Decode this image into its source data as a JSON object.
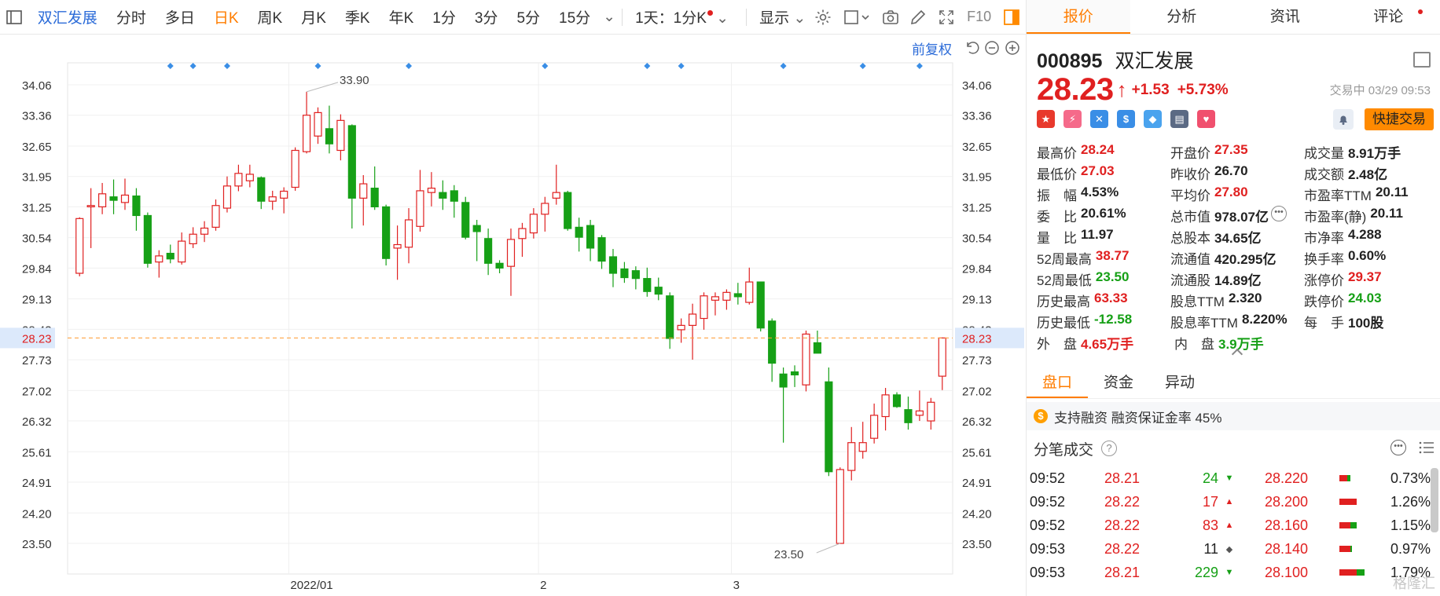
{
  "toolbar": {
    "sidebar_toggle": "sidebar-toggle",
    "stock_name": "双汇发展",
    "periods": [
      "分时",
      "多日",
      "日K",
      "周K",
      "月K",
      "季K",
      "年K",
      "1分",
      "3分",
      "5分",
      "15分"
    ],
    "active_period": "日K",
    "multi_period": "1天：1分K",
    "display": "显示",
    "f10": "F10"
  },
  "subbar": {
    "adjust": "前复权"
  },
  "chart_data": {
    "type": "candlestick",
    "y_ticks": [
      "34.06",
      "33.36",
      "32.65",
      "31.95",
      "31.25",
      "30.54",
      "29.84",
      "29.13",
      "28.43",
      "27.73",
      "27.02",
      "26.32",
      "25.61",
      "24.91",
      "24.20",
      "23.50"
    ],
    "ylim": [
      23.5,
      34.06
    ],
    "x_labels": [
      "2022/01",
      "2",
      "3"
    ],
    "current_price_label": "28.23",
    "current_price": 28.23,
    "high_label": "33.90",
    "low_label": "23.50",
    "candles": [
      {
        "o": 29.72,
        "h": 31.01,
        "l": 29.65,
        "c": 30.98
      },
      {
        "o": 31.25,
        "h": 31.68,
        "l": 30.3,
        "c": 31.28
      },
      {
        "o": 31.25,
        "h": 31.8,
        "l": 31.08,
        "c": 31.55
      },
      {
        "o": 31.48,
        "h": 31.88,
        "l": 31.08,
        "c": 31.4
      },
      {
        "o": 31.35,
        "h": 31.9,
        "l": 31.18,
        "c": 31.52
      },
      {
        "o": 31.5,
        "h": 31.68,
        "l": 30.7,
        "c": 31.05
      },
      {
        "o": 31.05,
        "h": 31.12,
        "l": 29.85,
        "c": 29.95
      },
      {
        "o": 29.98,
        "h": 30.25,
        "l": 29.62,
        "c": 30.12
      },
      {
        "o": 30.18,
        "h": 30.38,
        "l": 29.95,
        "c": 30.05
      },
      {
        "o": 29.98,
        "h": 30.66,
        "l": 29.92,
        "c": 30.46
      },
      {
        "o": 30.4,
        "h": 30.78,
        "l": 30.3,
        "c": 30.62
      },
      {
        "o": 30.62,
        "h": 30.92,
        "l": 30.44,
        "c": 30.76
      },
      {
        "o": 30.78,
        "h": 31.42,
        "l": 30.7,
        "c": 31.28
      },
      {
        "o": 31.22,
        "h": 31.95,
        "l": 31.12,
        "c": 31.73
      },
      {
        "o": 31.73,
        "h": 32.22,
        "l": 31.61,
        "c": 32.02
      },
      {
        "o": 31.85,
        "h": 32.22,
        "l": 31.7,
        "c": 32.0
      },
      {
        "o": 31.92,
        "h": 31.95,
        "l": 31.2,
        "c": 31.38
      },
      {
        "o": 31.38,
        "h": 31.62,
        "l": 31.18,
        "c": 31.48
      },
      {
        "o": 31.45,
        "h": 31.7,
        "l": 31.1,
        "c": 31.61
      },
      {
        "o": 31.7,
        "h": 32.62,
        "l": 31.62,
        "c": 32.55
      },
      {
        "o": 32.52,
        "h": 33.9,
        "l": 32.48,
        "c": 33.36
      },
      {
        "o": 32.88,
        "h": 33.54,
        "l": 32.7,
        "c": 33.42
      },
      {
        "o": 33.05,
        "h": 33.58,
        "l": 32.48,
        "c": 32.7
      },
      {
        "o": 32.55,
        "h": 33.38,
        "l": 32.32,
        "c": 33.24
      },
      {
        "o": 33.12,
        "h": 33.15,
        "l": 30.75,
        "c": 31.45
      },
      {
        "o": 31.45,
        "h": 31.98,
        "l": 30.82,
        "c": 31.78
      },
      {
        "o": 31.68,
        "h": 32.18,
        "l": 31.18,
        "c": 31.25
      },
      {
        "o": 31.25,
        "h": 31.3,
        "l": 29.9,
        "c": 30.06
      },
      {
        "o": 30.3,
        "h": 30.82,
        "l": 29.57,
        "c": 30.38
      },
      {
        "o": 30.32,
        "h": 31.22,
        "l": 29.95,
        "c": 30.95
      },
      {
        "o": 30.8,
        "h": 32.1,
        "l": 30.68,
        "c": 31.62
      },
      {
        "o": 31.58,
        "h": 32.05,
        "l": 31.26,
        "c": 31.68
      },
      {
        "o": 31.58,
        "h": 31.86,
        "l": 31.18,
        "c": 31.45
      },
      {
        "o": 31.62,
        "h": 31.75,
        "l": 31.0,
        "c": 31.38
      },
      {
        "o": 31.35,
        "h": 31.48,
        "l": 30.5,
        "c": 30.55
      },
      {
        "o": 30.82,
        "h": 30.95,
        "l": 30.0,
        "c": 30.68
      },
      {
        "o": 30.52,
        "h": 30.75,
        "l": 29.68,
        "c": 29.95
      },
      {
        "o": 29.95,
        "h": 30.02,
        "l": 29.72,
        "c": 29.84
      },
      {
        "o": 29.88,
        "h": 30.75,
        "l": 29.2,
        "c": 30.5
      },
      {
        "o": 30.52,
        "h": 30.88,
        "l": 30.1,
        "c": 30.75
      },
      {
        "o": 30.65,
        "h": 31.22,
        "l": 30.52,
        "c": 31.08
      },
      {
        "o": 31.08,
        "h": 31.48,
        "l": 30.68,
        "c": 31.33
      },
      {
        "o": 31.45,
        "h": 32.22,
        "l": 31.3,
        "c": 31.58
      },
      {
        "o": 31.58,
        "h": 31.62,
        "l": 30.7,
        "c": 30.75
      },
      {
        "o": 30.78,
        "h": 31.0,
        "l": 30.22,
        "c": 30.55
      },
      {
        "o": 30.82,
        "h": 30.95,
        "l": 30.0,
        "c": 30.3
      },
      {
        "o": 30.54,
        "h": 30.6,
        "l": 29.82,
        "c": 30.0
      },
      {
        "o": 30.1,
        "h": 30.28,
        "l": 29.4,
        "c": 29.72
      },
      {
        "o": 29.82,
        "h": 29.98,
        "l": 29.5,
        "c": 29.62
      },
      {
        "o": 29.78,
        "h": 29.88,
        "l": 29.35,
        "c": 29.6
      },
      {
        "o": 29.6,
        "h": 29.85,
        "l": 29.18,
        "c": 29.3
      },
      {
        "o": 29.4,
        "h": 29.62,
        "l": 29.1,
        "c": 29.24
      },
      {
        "o": 29.2,
        "h": 29.28,
        "l": 27.98,
        "c": 28.22
      },
      {
        "o": 28.42,
        "h": 28.68,
        "l": 28.12,
        "c": 28.52
      },
      {
        "o": 28.52,
        "h": 29.02,
        "l": 27.73,
        "c": 28.78
      },
      {
        "o": 28.68,
        "h": 29.28,
        "l": 28.42,
        "c": 29.2
      },
      {
        "o": 29.1,
        "h": 29.28,
        "l": 28.75,
        "c": 29.18
      },
      {
        "o": 29.1,
        "h": 29.35,
        "l": 28.88,
        "c": 29.28
      },
      {
        "o": 29.25,
        "h": 29.5,
        "l": 29.0,
        "c": 29.18
      },
      {
        "o": 29.05,
        "h": 29.85,
        "l": 29.0,
        "c": 29.52
      },
      {
        "o": 29.52,
        "h": 29.52,
        "l": 28.38,
        "c": 28.46
      },
      {
        "o": 28.62,
        "h": 28.68,
        "l": 27.22,
        "c": 27.65
      },
      {
        "o": 27.4,
        "h": 27.55,
        "l": 25.82,
        "c": 27.1
      },
      {
        "o": 27.45,
        "h": 27.6,
        "l": 27.1,
        "c": 27.38
      },
      {
        "o": 27.15,
        "h": 28.4,
        "l": 27.0,
        "c": 28.32
      },
      {
        "o": 28.12,
        "h": 28.4,
        "l": 27.95,
        "c": 27.88
      },
      {
        "o": 27.22,
        "h": 27.55,
        "l": 25.05,
        "c": 25.15
      },
      {
        "o": 23.5,
        "h": 25.25,
        "l": 23.5,
        "c": 25.2
      },
      {
        "o": 25.18,
        "h": 26.18,
        "l": 24.95,
        "c": 25.82
      },
      {
        "o": 25.62,
        "h": 26.3,
        "l": 25.45,
        "c": 25.82
      },
      {
        "o": 25.92,
        "h": 26.72,
        "l": 25.8,
        "c": 26.45
      },
      {
        "o": 26.42,
        "h": 27.08,
        "l": 26.1,
        "c": 26.92
      },
      {
        "o": 26.92,
        "h": 26.98,
        "l": 26.62,
        "c": 26.65
      },
      {
        "o": 26.58,
        "h": 26.88,
        "l": 26.12,
        "c": 26.28
      },
      {
        "o": 26.45,
        "h": 27.02,
        "l": 26.32,
        "c": 26.55
      },
      {
        "o": 26.32,
        "h": 26.85,
        "l": 26.12,
        "c": 26.75
      },
      {
        "o": 27.35,
        "h": 28.24,
        "l": 27.03,
        "c": 28.23
      }
    ],
    "event_markers": [
      8,
      10,
      13,
      21,
      29,
      41,
      50,
      53,
      62,
      69,
      74
    ]
  },
  "quote": {
    "tabs": [
      "报价",
      "分析",
      "资讯",
      "评论"
    ],
    "code": "000895",
    "name": "双汇发展",
    "price": "28.23",
    "change": "+1.53",
    "change_pct": "+5.73%",
    "status": "交易中 03/29 09:53",
    "quick_trade": "快捷交易",
    "stats": [
      [
        {
          "label": "最高价",
          "value": "28.24",
          "color": "red"
        },
        {
          "label": "开盘价",
          "value": "27.35",
          "color": "red"
        },
        {
          "label": "成交量",
          "value": "8.91万手",
          "color": "dark"
        }
      ],
      [
        {
          "label": "最低价",
          "value": "27.03",
          "color": "red"
        },
        {
          "label": "昨收价",
          "value": "26.70",
          "color": "dark"
        },
        {
          "label": "成交额",
          "value": "2.48亿",
          "color": "dark"
        }
      ],
      [
        {
          "label": "振　幅",
          "value": "4.53%",
          "color": "dark"
        },
        {
          "label": "平均价",
          "value": "27.80",
          "color": "red"
        },
        {
          "label": "市盈率TTM",
          "value": "20.11",
          "color": "dark"
        }
      ],
      [
        {
          "label": "委　比",
          "value": "20.61%",
          "color": "dark"
        },
        {
          "label": "总市值",
          "value": "978.07亿",
          "color": "dark"
        },
        {
          "label": "市盈率(静)",
          "value": "20.11",
          "color": "dark"
        }
      ],
      [
        {
          "label": "量　比",
          "value": "11.97",
          "color": "dark"
        },
        {
          "label": "总股本",
          "value": "34.65亿",
          "color": "dark"
        },
        {
          "label": "市净率",
          "value": "4.288",
          "color": "dark"
        }
      ],
      [
        {
          "label": "52周最高",
          "value": "38.77",
          "color": "red"
        },
        {
          "label": "流通值",
          "value": "420.295亿",
          "color": "dark"
        },
        {
          "label": "换手率",
          "value": "0.60%",
          "color": "dark"
        }
      ],
      [
        {
          "label": "52周最低",
          "value": "23.50",
          "color": "green"
        },
        {
          "label": "流通股",
          "value": "14.89亿",
          "color": "dark"
        },
        {
          "label": "涨停价",
          "value": "29.37",
          "color": "red"
        }
      ],
      [
        {
          "label": "历史最高",
          "value": "63.33",
          "color": "red"
        },
        {
          "label": "股息TTM",
          "value": "2.320",
          "color": "dark"
        },
        {
          "label": "跌停价",
          "value": "24.03",
          "color": "green"
        }
      ],
      [
        {
          "label": "历史最低",
          "value": "-12.58",
          "color": "green"
        },
        {
          "label": "股息率TTM",
          "value": "8.220%",
          "color": "dark"
        },
        {
          "label": "每　手",
          "value": "100股",
          "color": "dark"
        }
      ],
      [
        {
          "label": "外　盘",
          "value": "4.65万手",
          "color": "red"
        },
        {
          "label": "内　盘",
          "value": "3.9万手",
          "color": "green"
        }
      ]
    ],
    "bottom_tabs": [
      "盘口",
      "资金",
      "异动"
    ],
    "margin_text": "支持融资 融资保证金率 45%",
    "ticks_title": "分笔成交",
    "ticks": [
      {
        "time": "09:52",
        "price": "28.21",
        "vol": "24",
        "dir": "down",
        "level": "28.220",
        "pct": "0.73%",
        "bar": [
          0.25,
          0.1
        ]
      },
      {
        "time": "09:52",
        "price": "28.22",
        "vol": "17",
        "dir": "up",
        "level": "28.200",
        "pct": "1.26%",
        "bar": [
          0.55,
          0.0
        ]
      },
      {
        "time": "09:52",
        "price": "28.22",
        "vol": "83",
        "dir": "up",
        "level": "28.160",
        "pct": "1.15%",
        "bar": [
          0.35,
          0.2
        ]
      },
      {
        "time": "09:53",
        "price": "28.22",
        "vol": "11",
        "dir": "neutral",
        "level": "28.140",
        "pct": "0.97%",
        "bar": [
          0.35,
          0.05
        ]
      },
      {
        "time": "09:53",
        "price": "28.21",
        "vol": "229",
        "dir": "down",
        "level": "28.100",
        "pct": "1.79%",
        "bar": [
          0.55,
          0.25
        ]
      }
    ],
    "watermark": "格隆汇"
  }
}
